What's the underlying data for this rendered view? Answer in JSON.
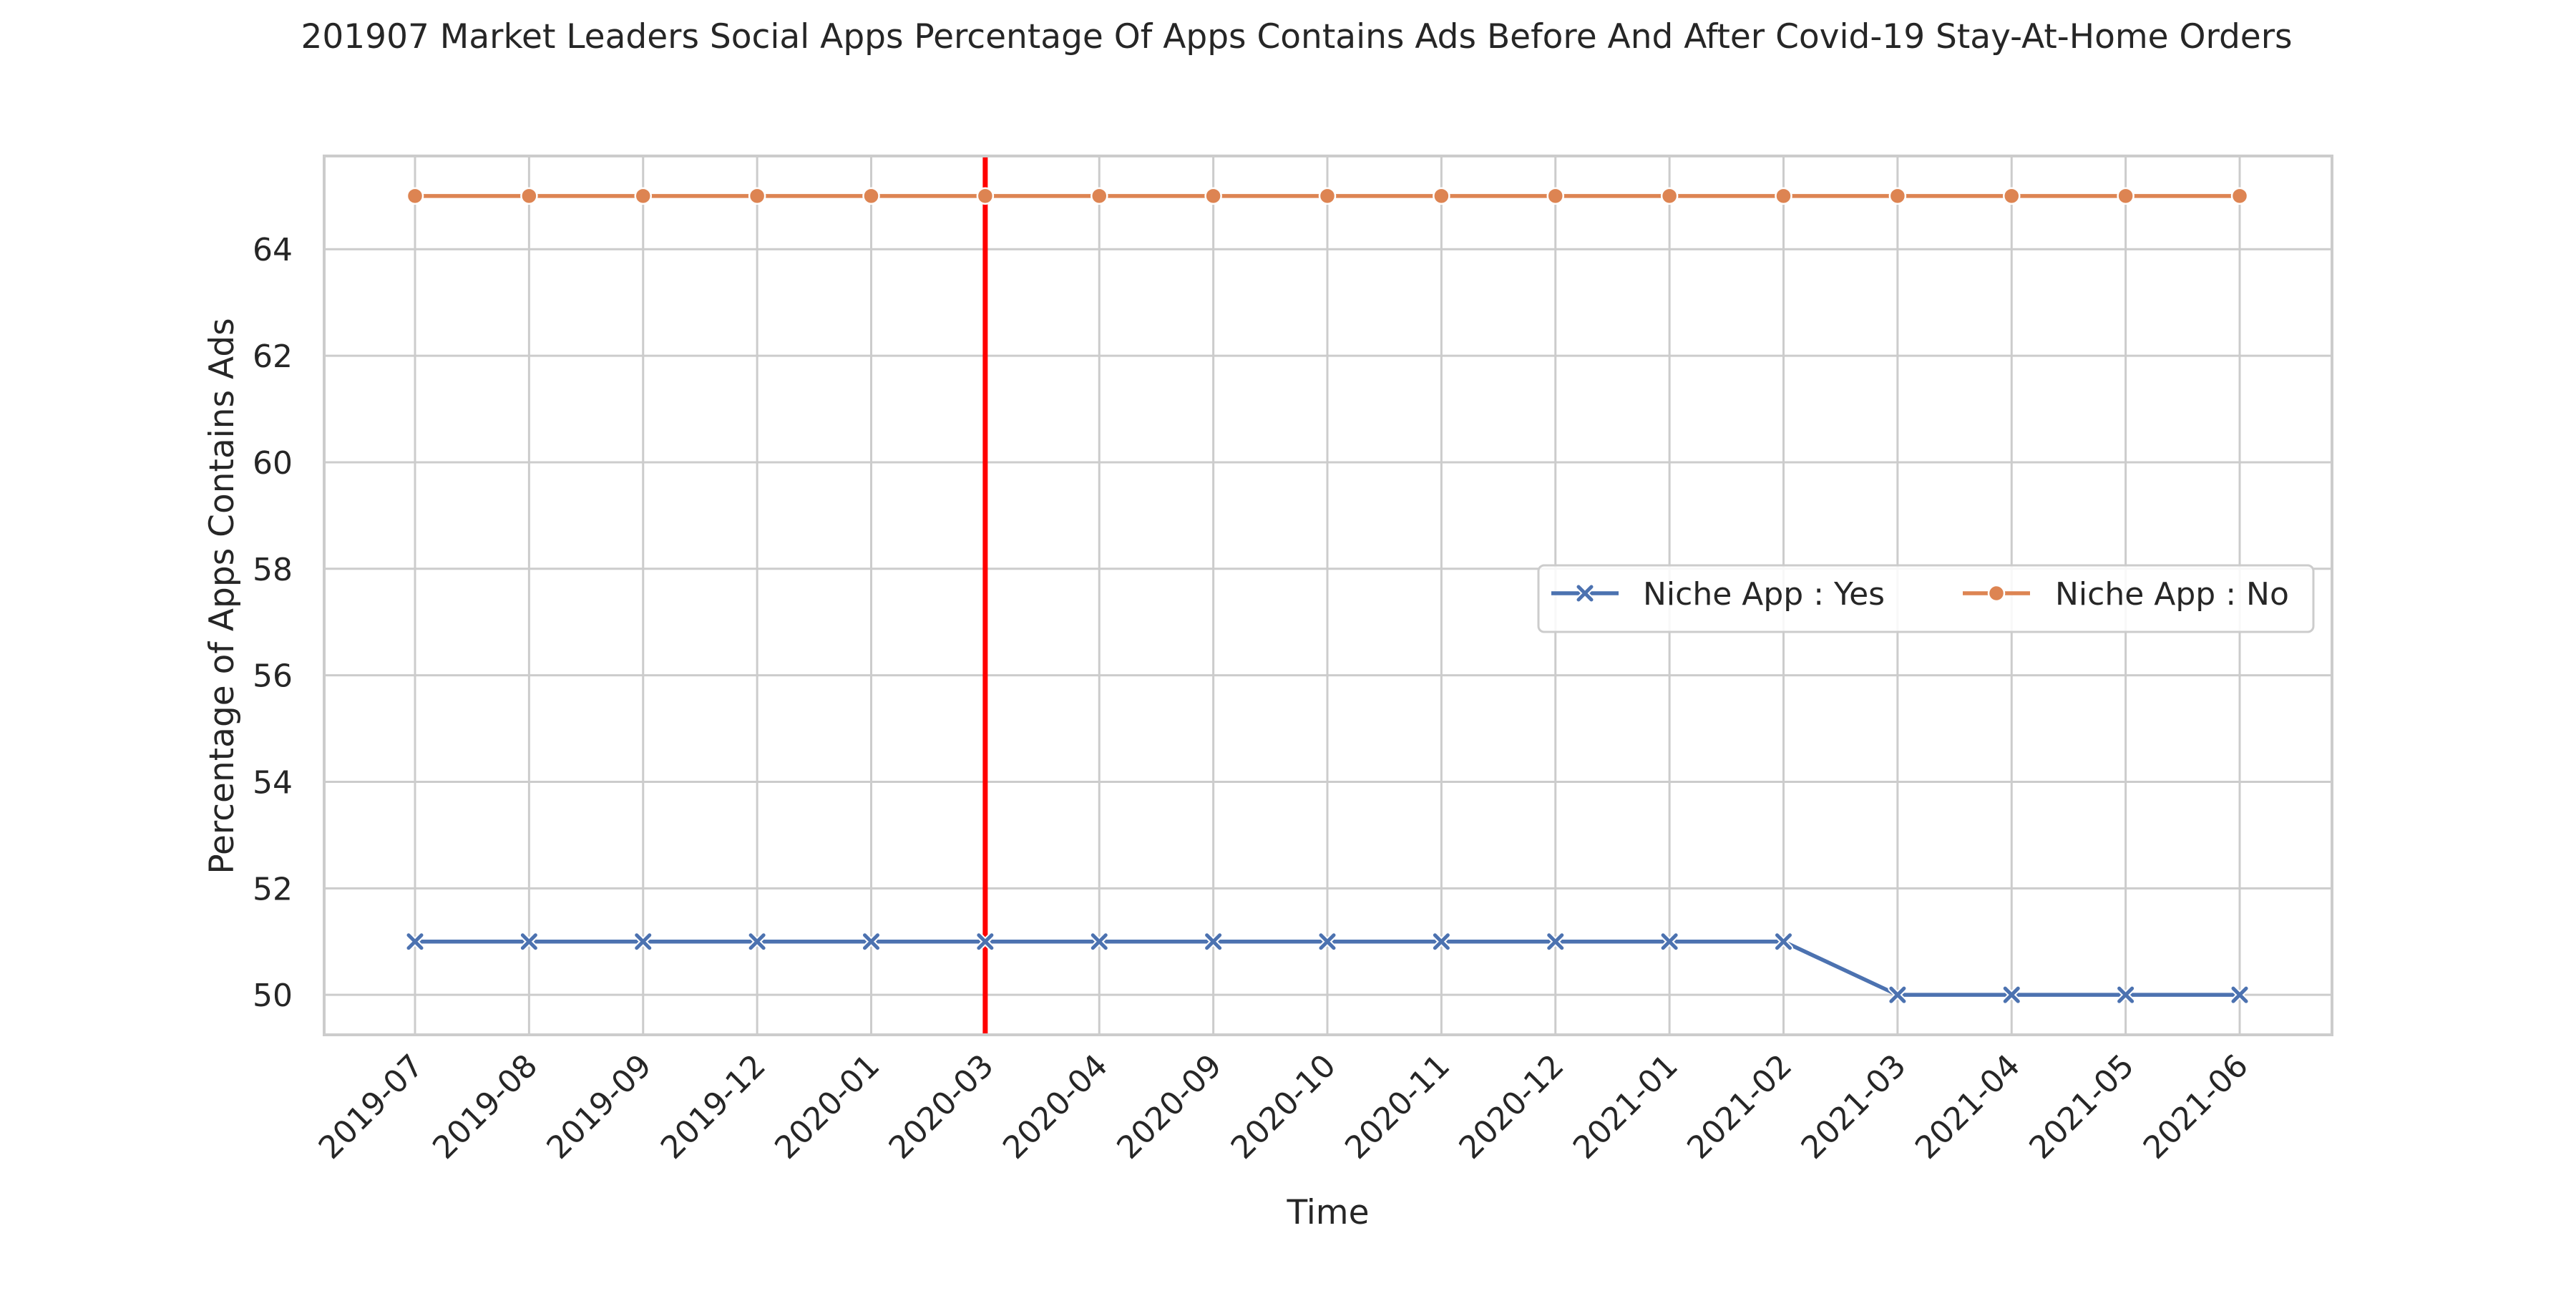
{
  "chart_data": {
    "type": "line",
    "title": "201907 Market Leaders Social Apps Percentage Of Apps Contains Ads Before And After Covid-19 Stay-At-Home Orders",
    "xlabel": "Time",
    "ylabel": "Percentage of Apps Contains Ads",
    "categories": [
      "2019-07",
      "2019-08",
      "2019-09",
      "2019-12",
      "2020-01",
      "2020-03",
      "2020-04",
      "2020-09",
      "2020-10",
      "2020-11",
      "2020-12",
      "2021-01",
      "2021-02",
      "2021-03",
      "2021-04",
      "2021-05",
      "2021-06"
    ],
    "series": [
      {
        "name": "Niche App : Yes",
        "color": "#4c72b0",
        "marker": "x",
        "values": [
          51,
          51,
          51,
          51,
          51,
          51,
          51,
          51,
          51,
          51,
          51,
          51,
          51,
          50,
          50,
          50,
          50
        ]
      },
      {
        "name": "Niche App : No",
        "color": "#dd8452",
        "marker": "circle",
        "values": [
          65,
          65,
          65,
          65,
          65,
          65,
          65,
          65,
          65,
          65,
          65,
          65,
          65,
          65,
          65,
          65,
          65
        ]
      }
    ],
    "yticks": [
      50,
      52,
      54,
      56,
      58,
      60,
      62,
      64
    ],
    "ylim": [
      49.25,
      65.75
    ],
    "reference_line": {
      "category": "2020-03",
      "color": "#ff0000"
    },
    "grid": true,
    "legend": {
      "placement": "center-right",
      "columns": 2
    }
  }
}
